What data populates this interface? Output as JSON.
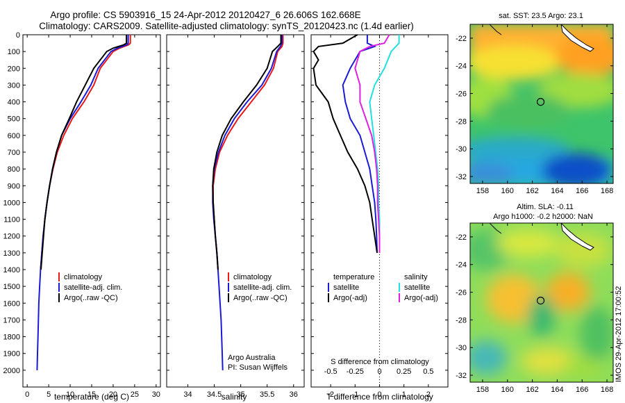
{
  "header": {
    "line1": "Argo profile: CS 5903916_15 24-Apr-2012 20120427_6 26.606S 162.668E",
    "line2": "Climatology: CARS2009. Satellite-adjusted climatology: synTS_20120423.nc (1.4d earlier)"
  },
  "colors": {
    "climatology": "#e8191a",
    "satellite": "#1a1ad6",
    "argo": "#000000",
    "sat_salinity": "#22e0e0",
    "argo_salinity": "#e020e0"
  },
  "legend_common": {
    "climatology": "climatology",
    "satellite_adj": "satellite-adj. clim.",
    "argo": "Argo(..raw -QC)"
  },
  "legend_diff": {
    "temperature": "temperature",
    "salinity": "salinity",
    "satellite": "satellite",
    "argo_adj": "Argo(-adj)"
  },
  "credits": {
    "line1": "Argo Australia",
    "line2": "PI: Susan Wijffels"
  },
  "imos_stamp": "IMOS 29-Apr-2012 17:00:52",
  "chart_data": [
    {
      "type": "line",
      "id": "temperature_profile",
      "xlabel": "temperature (deg C)",
      "xlim": [
        -1,
        31
      ],
      "xticks": [
        0,
        5,
        10,
        15,
        20,
        25,
        30
      ],
      "ylim": [
        0,
        2100
      ],
      "yticks": [
        0,
        100,
        200,
        300,
        400,
        500,
        600,
        700,
        800,
        900,
        1000,
        1100,
        1200,
        1300,
        1400,
        1500,
        1600,
        1700,
        1800,
        1900,
        2000
      ],
      "series": [
        {
          "name": "climatology",
          "color_key": "climatology",
          "points": [
            [
              24,
              0
            ],
            [
              24,
              50
            ],
            [
              23.6,
              60
            ],
            [
              21.5,
              80
            ],
            [
              20,
              100
            ],
            [
              18.5,
              150
            ],
            [
              17,
              200
            ],
            [
              15.5,
              300
            ],
            [
              13.2,
              400
            ],
            [
              10.5,
              500
            ],
            [
              8.5,
              600
            ],
            [
              7,
              700
            ],
            [
              6,
              800
            ],
            [
              5.2,
              900
            ],
            [
              4.6,
              1000
            ],
            [
              4.1,
              1100
            ],
            [
              3.7,
              1200
            ],
            [
              3.4,
              1300
            ],
            [
              3.1,
              1400
            ]
          ]
        },
        {
          "name": "satellite-adj. clim.",
          "color_key": "satellite",
          "points": [
            [
              23.5,
              0
            ],
            [
              23.5,
              50
            ],
            [
              23.2,
              60
            ],
            [
              21,
              80
            ],
            [
              19.5,
              100
            ],
            [
              18,
              150
            ],
            [
              16.5,
              200
            ],
            [
              14.8,
              300
            ],
            [
              12.5,
              400
            ],
            [
              10,
              500
            ],
            [
              8,
              600
            ],
            [
              6.8,
              700
            ],
            [
              5.9,
              800
            ],
            [
              5.2,
              900
            ],
            [
              4.6,
              1000
            ],
            [
              4.1,
              1100
            ],
            [
              3.7,
              1200
            ],
            [
              3.4,
              1300
            ],
            [
              3.1,
              1400
            ],
            [
              2.9,
              1500
            ],
            [
              2.7,
              1600
            ],
            [
              2.6,
              1700
            ],
            [
              2.5,
              1800
            ],
            [
              2.4,
              1900
            ],
            [
              2.3,
              2000
            ]
          ]
        },
        {
          "name": "Argo(..raw -QC)",
          "color_key": "argo",
          "points": [
            [
              23.1,
              0
            ],
            [
              23.1,
              50
            ],
            [
              22.5,
              60
            ],
            [
              20,
              80
            ],
            [
              18.5,
              100
            ],
            [
              17,
              150
            ],
            [
              15.5,
              200
            ],
            [
              13.5,
              300
            ],
            [
              11.5,
              400
            ],
            [
              9.8,
              500
            ],
            [
              8,
              600
            ],
            [
              6.8,
              700
            ],
            [
              5.9,
              800
            ],
            [
              5.2,
              900
            ],
            [
              4.6,
              1000
            ],
            [
              4.1,
              1100
            ],
            [
              3.8,
              1200
            ],
            [
              3.5,
              1300
            ],
            [
              3.2,
              1400
            ]
          ]
        }
      ]
    },
    {
      "type": "line",
      "id": "salinity_profile",
      "xlabel": "salinity",
      "xlim": [
        33.6,
        36.2
      ],
      "xticks": [
        34,
        34.5,
        35,
        35.5,
        36
      ],
      "ylim": [
        0,
        2100
      ],
      "series": [
        {
          "name": "climatology",
          "color_key": "climatology",
          "points": [
            [
              35.8,
              0
            ],
            [
              35.8,
              50
            ],
            [
              35.78,
              70
            ],
            [
              35.7,
              100
            ],
            [
              35.62,
              200
            ],
            [
              35.45,
              300
            ],
            [
              35.2,
              400
            ],
            [
              34.95,
              500
            ],
            [
              34.75,
              600
            ],
            [
              34.6,
              700
            ],
            [
              34.52,
              800
            ],
            [
              34.48,
              900
            ],
            [
              34.48,
              1000
            ],
            [
              34.5,
              1100
            ],
            [
              34.52,
              1200
            ],
            [
              34.55,
              1300
            ],
            [
              34.57,
              1400
            ]
          ]
        },
        {
          "name": "satellite-adj. clim.",
          "color_key": "satellite",
          "points": [
            [
              35.78,
              0
            ],
            [
              35.78,
              50
            ],
            [
              35.75,
              70
            ],
            [
              35.68,
              100
            ],
            [
              35.58,
              200
            ],
            [
              35.4,
              300
            ],
            [
              35.12,
              400
            ],
            [
              34.88,
              500
            ],
            [
              34.7,
              600
            ],
            [
              34.58,
              700
            ],
            [
              34.5,
              800
            ],
            [
              34.47,
              900
            ],
            [
              34.47,
              1000
            ],
            [
              34.49,
              1100
            ],
            [
              34.52,
              1200
            ],
            [
              34.55,
              1300
            ],
            [
              34.57,
              1400
            ],
            [
              34.59,
              1500
            ],
            [
              34.61,
              1600
            ],
            [
              34.63,
              1700
            ],
            [
              34.64,
              1800
            ],
            [
              34.65,
              1900
            ],
            [
              34.66,
              2000
            ]
          ]
        },
        {
          "name": "Argo(..raw -QC)",
          "color_key": "argo",
          "points": [
            [
              35.76,
              0
            ],
            [
              35.76,
              50
            ],
            [
              35.7,
              70
            ],
            [
              35.6,
              100
            ],
            [
              35.5,
              200
            ],
            [
              35.3,
              300
            ],
            [
              35.05,
              400
            ],
            [
              34.82,
              500
            ],
            [
              34.65,
              600
            ],
            [
              34.55,
              700
            ],
            [
              34.49,
              800
            ],
            [
              34.47,
              900
            ],
            [
              34.48,
              1000
            ],
            [
              34.5,
              1100
            ],
            [
              34.52,
              1200
            ],
            [
              34.55,
              1300
            ],
            [
              34.57,
              1400
            ]
          ]
        }
      ]
    },
    {
      "type": "line",
      "id": "difference_profile",
      "xlabel": "T difference from climatology",
      "xlabel_top": "S difference from climatology",
      "xlim": [
        -2.8,
        2.8
      ],
      "xticks": [
        -2,
        -1,
        0,
        1,
        2
      ],
      "sticks": [
        -0.5,
        -0.25,
        0,
        0.25,
        0.5
      ],
      "ylim": [
        0,
        2100
      ],
      "series": [
        {
          "name": "temperature satellite",
          "color_key": "satellite",
          "points": [
            [
              -0.5,
              0
            ],
            [
              -0.5,
              50
            ],
            [
              -0.2,
              70
            ],
            [
              -0.8,
              100
            ],
            [
              -1.2,
              200
            ],
            [
              -1.5,
              300
            ],
            [
              -1.4,
              400
            ],
            [
              -1.2,
              500
            ],
            [
              -0.8,
              600
            ],
            [
              -0.6,
              700
            ],
            [
              -0.4,
              800
            ],
            [
              -0.3,
              900
            ],
            [
              -0.2,
              1000
            ],
            [
              -0.15,
              1100
            ],
            [
              -0.12,
              1200
            ],
            [
              -0.1,
              1300
            ]
          ]
        },
        {
          "name": "temperature Argo(-adj)",
          "color_key": "argo",
          "points": [
            [
              -0.9,
              0
            ],
            [
              -1.5,
              50
            ],
            [
              -2.5,
              70
            ],
            [
              -2.7,
              100
            ],
            [
              -2.5,
              150
            ],
            [
              -2.7,
              200
            ],
            [
              -2.6,
              300
            ],
            [
              -2.1,
              400
            ],
            [
              -1.9,
              500
            ],
            [
              -1.6,
              600
            ],
            [
              -1.3,
              700
            ],
            [
              -0.9,
              800
            ],
            [
              -0.6,
              900
            ],
            [
              -0.4,
              1000
            ],
            [
              -0.3,
              1100
            ],
            [
              -0.2,
              1200
            ],
            [
              -0.1,
              1300
            ]
          ]
        },
        {
          "name": "salinity satellite",
          "color_key": "sat_salinity",
          "scale": "S",
          "points": [
            [
              0.2,
              0
            ],
            [
              0.2,
              50
            ],
            [
              0.12,
              100
            ],
            [
              0.05,
              200
            ],
            [
              -0.05,
              300
            ],
            [
              -0.1,
              400
            ],
            [
              -0.08,
              500
            ],
            [
              -0.06,
              600
            ],
            [
              -0.04,
              700
            ],
            [
              -0.02,
              800
            ],
            [
              -0.01,
              900
            ],
            [
              -0.01,
              1000
            ],
            [
              0,
              1100
            ],
            [
              0,
              1200
            ],
            [
              0,
              1300
            ]
          ]
        },
        {
          "name": "salinity Argo(-adj)",
          "color_key": "argo_salinity",
          "scale": "S",
          "points": [
            [
              0.1,
              0
            ],
            [
              0.05,
              50
            ],
            [
              -0.1,
              70
            ],
            [
              -0.2,
              100
            ],
            [
              -0.25,
              200
            ],
            [
              -0.2,
              300
            ],
            [
              -0.2,
              400
            ],
            [
              -0.14,
              500
            ],
            [
              -0.08,
              600
            ],
            [
              -0.05,
              700
            ],
            [
              -0.03,
              800
            ],
            [
              -0.02,
              900
            ],
            [
              -0.02,
              1000
            ],
            [
              -0.01,
              1100
            ],
            [
              0,
              1200
            ],
            [
              0,
              1300
            ]
          ]
        }
      ]
    },
    {
      "type": "heatmap",
      "id": "sst_map",
      "title": "sat. SST: 23.5 Argo: 23.1",
      "xlim": [
        157,
        168.5
      ],
      "ylim": [
        -32.5,
        -21
      ],
      "xticks": [
        158,
        160,
        162,
        164,
        166,
        168
      ],
      "yticks": [
        -22,
        -24,
        -26,
        -28,
        -30,
        -32
      ],
      "marker": [
        162.668,
        -26.606
      ]
    },
    {
      "type": "heatmap",
      "id": "sla_map",
      "title_line1": "Altim. SLA: -0.11",
      "title_line2": "Argo h1000: -0.2 h2000: NaN",
      "xlim": [
        157,
        168.5
      ],
      "ylim": [
        -32.5,
        -21
      ],
      "xticks": [
        158,
        160,
        162,
        164,
        166,
        168
      ],
      "yticks": [
        -22,
        -24,
        -26,
        -28,
        -30,
        -32
      ],
      "marker": [
        162.668,
        -26.606
      ]
    }
  ]
}
